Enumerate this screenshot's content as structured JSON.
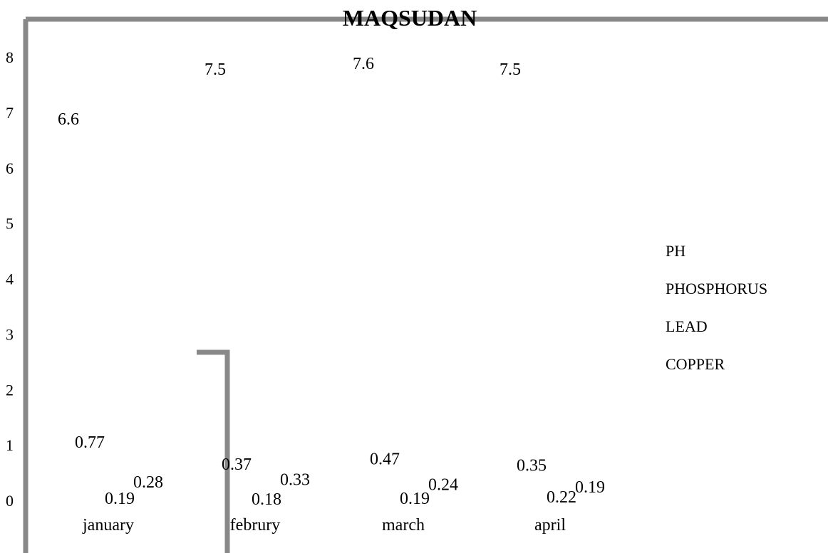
{
  "colors": {
    "frame": "#888888",
    "text": "#000000",
    "background": "#ffffff"
  },
  "chart_data": {
    "type": "bar",
    "title": "MAQSUDAN",
    "xlabel": "",
    "ylabel": "",
    "categories": [
      "january",
      "februry",
      "march",
      "april"
    ],
    "ylim": [
      0,
      8
    ],
    "yticks": [
      "0",
      "1",
      "2",
      "3",
      "4",
      "5",
      "6",
      "7",
      "8"
    ],
    "grid": false,
    "legend_position": "right",
    "series": [
      {
        "name": "PH",
        "values": [
          6.6,
          7.5,
          7.6,
          7.5
        ],
        "labels": [
          "6.6",
          "7.5",
          "7.6",
          "7.5"
        ]
      },
      {
        "name": "PHOSPHORUS",
        "values": [
          0.77,
          0.37,
          0.47,
          0.35
        ],
        "labels": [
          "0.77",
          "0.37",
          "0.47",
          "0.35"
        ]
      },
      {
        "name": "LEAD",
        "values": [
          0.19,
          0.18,
          0.19,
          0.22
        ],
        "labels": [
          "0.19",
          "0.18",
          "0.19",
          "0.22"
        ]
      },
      {
        "name": "COPPER",
        "values": [
          0.28,
          0.33,
          0.24,
          0.19
        ],
        "labels": [
          "0.28",
          "0.33",
          "0.24",
          "0.19"
        ]
      }
    ]
  }
}
